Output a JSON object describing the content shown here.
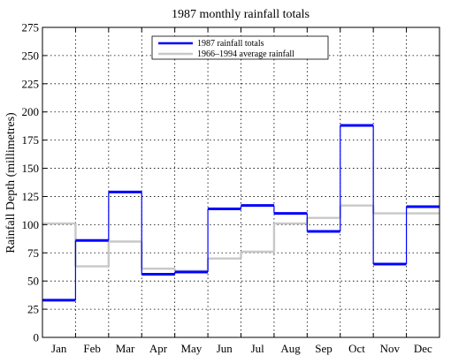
{
  "chart_data": {
    "type": "line",
    "step": true,
    "title": "1987 monthly rainfall totals",
    "xlabel": "",
    "ylabel": "Rainfall Depth (millimetres)",
    "ylim": [
      0,
      275
    ],
    "yticks": [
      0,
      25,
      50,
      75,
      100,
      125,
      150,
      175,
      200,
      225,
      250,
      275
    ],
    "categories": [
      "Jan",
      "Feb",
      "Mar",
      "Apr",
      "May",
      "Jun",
      "Jul",
      "Aug",
      "Sep",
      "Oct",
      "Nov",
      "Dec"
    ],
    "grid": true,
    "legend_position": "top-center",
    "series": [
      {
        "name": "1987 rainfall totals",
        "color": "#0000ff",
        "values": [
          33,
          86,
          129,
          56,
          58,
          114,
          117,
          110,
          94,
          188,
          65,
          116
        ]
      },
      {
        "name": "1966–1994 average rainfall",
        "color": "#c8c8c8",
        "values": [
          101,
          63,
          85,
          61,
          59,
          70,
          76,
          101,
          106,
          117,
          110,
          110
        ]
      }
    ]
  }
}
